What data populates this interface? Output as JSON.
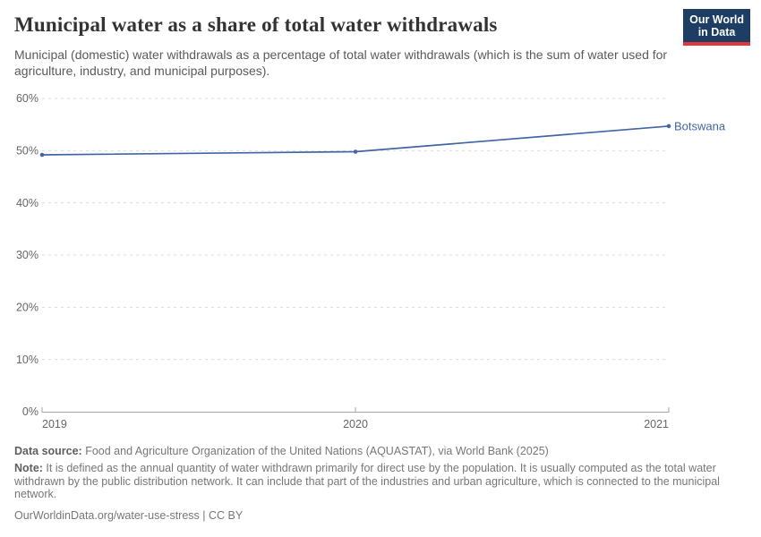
{
  "header": {
    "title": "Municipal water as a share of total water withdrawals",
    "subtitle": "Municipal (domestic) water withdrawals as a percentage of total water withdrawals (which is the sum of water used for agriculture, industry, and municipal purposes).",
    "logo_line1": "Our World",
    "logo_line2": "in Data"
  },
  "colors": {
    "line": "#4165a5",
    "logo_background": "#1d3d63",
    "logo_stripe": "#e0363c",
    "gridline": "#dcdcdc",
    "axis": "#a5a5a5",
    "tick_text": "#666666",
    "title_text": "#333333",
    "footer_text": "#777777"
  },
  "chart_data": {
    "type": "line",
    "title": "Municipal water as a share of total water withdrawals",
    "x": [
      "2019",
      "2020",
      "2021"
    ],
    "series": [
      {
        "name": "Botswana",
        "values": [
          49.2,
          49.8,
          54.7
        ]
      }
    ],
    "line_color": "#4165a5",
    "ylim": [
      0,
      60
    ],
    "ytick_step": 10,
    "ytick_suffix": "%",
    "xlabel": "",
    "ylabel": "",
    "grid": "horizontal-dashed",
    "legend_position": "line-end-label"
  },
  "footer": {
    "datasource_label": "Data source:",
    "datasource_text": " Food and Agriculture Organization of the United Nations (AQUASTAT), via World Bank (2025)",
    "note_label": "Note:",
    "note_text": " It is defined as the annual quantity of water withdrawn primarily for direct use by the population. It is usually computed as the total water withdrawn by the public distribution network. It can include that part of the industries and urban agriculture, which is connected to the municipal network.",
    "url": "OurWorldinData.org/water-use-stress",
    "separator": " | ",
    "license": "CC BY"
  }
}
